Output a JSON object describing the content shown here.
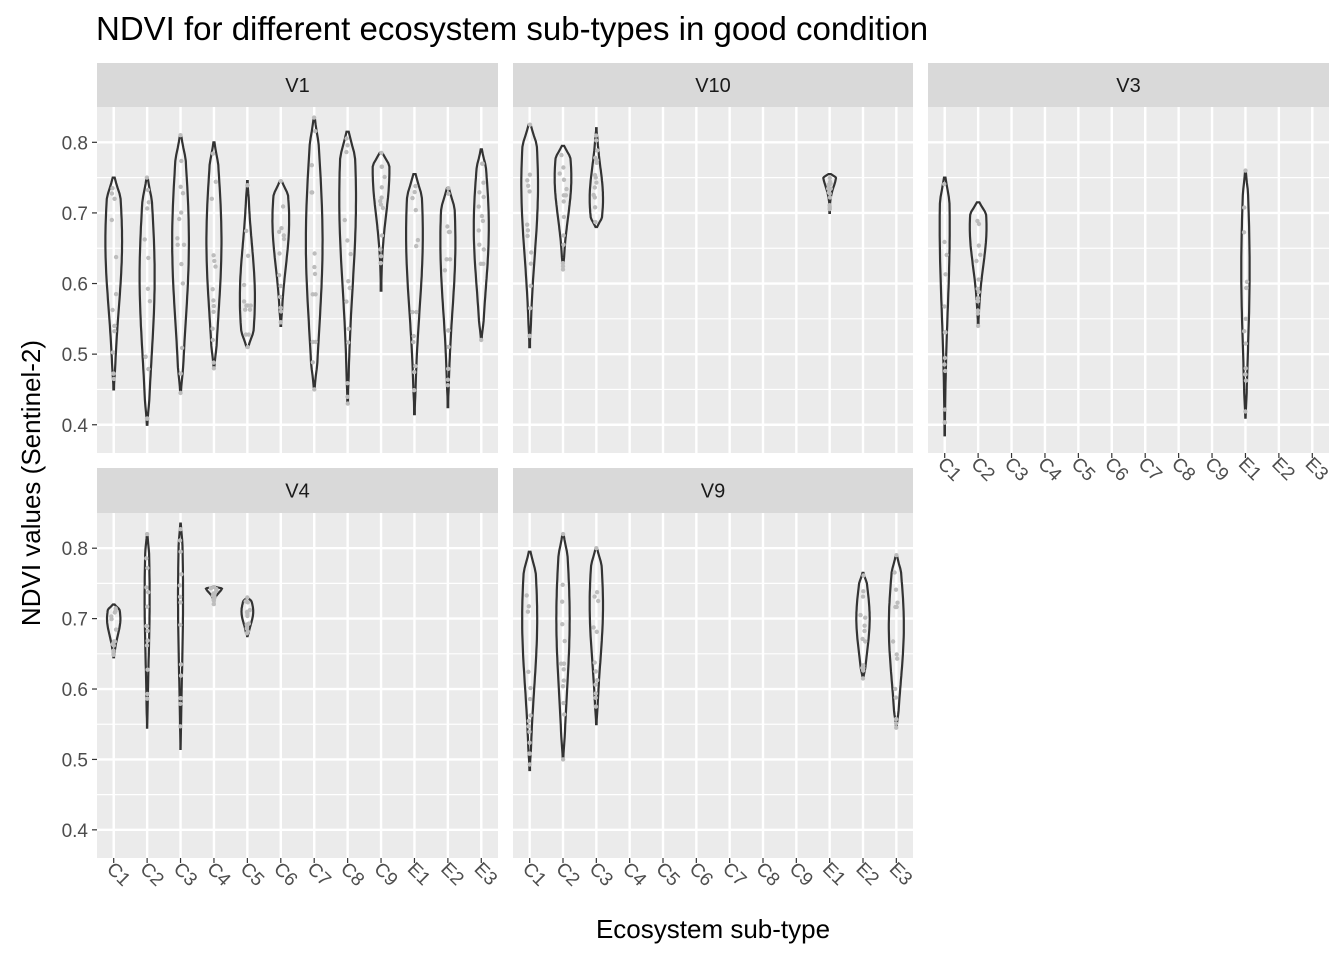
{
  "chart_data": {
    "type": "violin",
    "title": "NDVI for different ecosystem sub-types in good condition",
    "xlabel": "Ecosystem sub-type",
    "ylabel": "NDVI values (Sentinel-2)",
    "categories": [
      "C1",
      "C2",
      "C3",
      "C4",
      "C5",
      "C6",
      "C7",
      "C8",
      "C9",
      "E1",
      "E2",
      "E3"
    ],
    "y_ticks": [
      0.4,
      0.5,
      0.6,
      0.7,
      0.8
    ],
    "y_tick_labels": [
      "0.4",
      "0.5",
      "0.6",
      "0.7",
      "0.8"
    ],
    "ylim": [
      0.36,
      0.85
    ],
    "grid": true,
    "legend": "none",
    "colors": {
      "panel_bg": "#ebebeb",
      "strip_bg": "#d9d9d9",
      "grid_line": "#ffffff",
      "violin_outline": "#333333",
      "points": "#bdbdbd"
    },
    "facets": [
      {
        "name": "V1",
        "violins": [
          {
            "category": "C1",
            "min": 0.45,
            "max": 0.75,
            "peak": 0.66,
            "width": 0.5
          },
          {
            "category": "C2",
            "min": 0.4,
            "max": 0.75,
            "peak": 0.61,
            "width": 0.45
          },
          {
            "category": "C3",
            "min": 0.445,
            "max": 0.81,
            "peak": 0.66,
            "width": 0.5
          },
          {
            "category": "C4",
            "min": 0.48,
            "max": 0.8,
            "peak": 0.66,
            "width": 0.45
          },
          {
            "category": "C5",
            "min": 0.51,
            "max": 0.745,
            "peak": 0.58,
            "width": 0.45
          },
          {
            "category": "C6",
            "min": 0.54,
            "max": 0.745,
            "peak": 0.69,
            "width": 0.5
          },
          {
            "category": "C7",
            "min": 0.45,
            "max": 0.835,
            "peak": 0.66,
            "width": 0.5
          },
          {
            "category": "C8",
            "min": 0.43,
            "max": 0.815,
            "peak": 0.72,
            "width": 0.5
          },
          {
            "category": "C9",
            "min": 0.59,
            "max": 0.785,
            "peak": 0.76,
            "width": 0.5
          },
          {
            "category": "E1",
            "min": 0.415,
            "max": 0.755,
            "peak": 0.67,
            "width": 0.5
          },
          {
            "category": "E2",
            "min": 0.425,
            "max": 0.735,
            "peak": 0.66,
            "width": 0.45
          },
          {
            "category": "E3",
            "min": 0.52,
            "max": 0.79,
            "peak": 0.68,
            "width": 0.45
          }
        ]
      },
      {
        "name": "V10",
        "violins": [
          {
            "category": "C1",
            "min": 0.51,
            "max": 0.825,
            "peak": 0.74,
            "width": 0.5
          },
          {
            "category": "C2",
            "min": 0.62,
            "max": 0.795,
            "peak": 0.75,
            "width": 0.5
          },
          {
            "category": "C3",
            "min": 0.68,
            "max": 0.82,
            "peak": 0.72,
            "width": 0.4
          },
          {
            "category": "E1",
            "min": 0.7,
            "max": 0.755,
            "peak": 0.755,
            "width": 0.4
          }
        ]
      },
      {
        "name": "V3",
        "violins": [
          {
            "category": "C1",
            "min": 0.385,
            "max": 0.75,
            "peak": 0.68,
            "width": 0.3
          },
          {
            "category": "C2",
            "min": 0.54,
            "max": 0.715,
            "peak": 0.68,
            "width": 0.5
          },
          {
            "category": "E1",
            "min": 0.41,
            "max": 0.76,
            "peak": 0.62,
            "width": 0.25
          }
        ]
      },
      {
        "name": "V4",
        "violins": [
          {
            "category": "C1",
            "min": 0.645,
            "max": 0.72,
            "peak": 0.7,
            "width": 0.4
          },
          {
            "category": "C2",
            "min": 0.545,
            "max": 0.82,
            "peak": 0.73,
            "width": 0.15
          },
          {
            "category": "C3",
            "min": 0.515,
            "max": 0.835,
            "peak": 0.73,
            "width": 0.15
          },
          {
            "category": "C4",
            "min": 0.72,
            "max": 0.745,
            "peak": 0.745,
            "width": 0.5
          },
          {
            "category": "C5",
            "min": 0.675,
            "max": 0.73,
            "peak": 0.71,
            "width": 0.35
          }
        ]
      },
      {
        "name": "V9",
        "violins": [
          {
            "category": "C1",
            "min": 0.485,
            "max": 0.795,
            "peak": 0.7,
            "width": 0.45
          },
          {
            "category": "C2",
            "min": 0.5,
            "max": 0.82,
            "peak": 0.7,
            "width": 0.4
          },
          {
            "category": "C3",
            "min": 0.55,
            "max": 0.8,
            "peak": 0.72,
            "width": 0.4
          },
          {
            "category": "E2",
            "min": 0.615,
            "max": 0.765,
            "peak": 0.7,
            "width": 0.4
          },
          {
            "category": "E3",
            "min": 0.545,
            "max": 0.79,
            "peak": 0.69,
            "width": 0.45
          }
        ]
      }
    ]
  }
}
